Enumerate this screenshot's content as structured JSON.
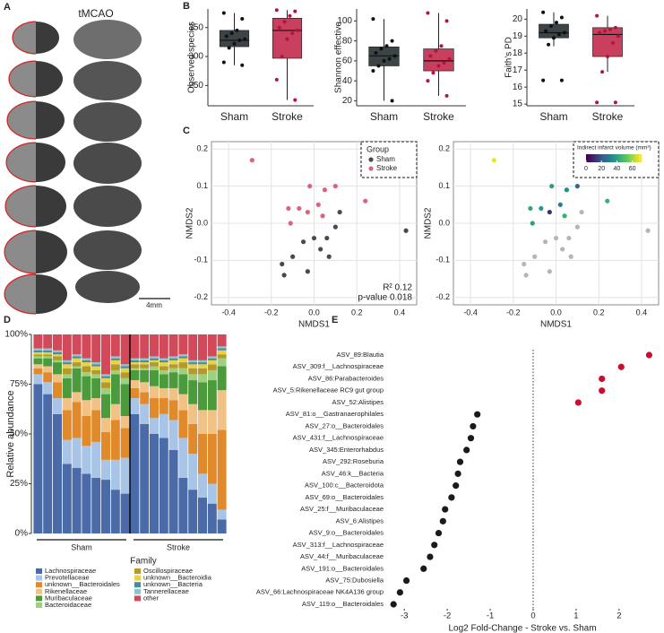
{
  "panel_labels": [
    "A",
    "B",
    "C",
    "D",
    "E"
  ],
  "panel_a": {
    "title": "tMCAO",
    "scale_bar": "4mm"
  },
  "chart_data": [
    {
      "type": "box",
      "ylabel": "Observed species",
      "categories": [
        "Sham",
        "Stroke"
      ],
      "colors": [
        "#3d4447",
        "#c9405f"
      ],
      "point_colors": [
        "#111111",
        "#b5123f"
      ],
      "boxes": [
        {
          "low": 285,
          "q1": 317,
          "median": 328,
          "q3": 345,
          "high": 375
        },
        {
          "low": 225,
          "q1": 297,
          "median": 345,
          "q3": 366,
          "high": 380
        }
      ],
      "points": [
        [
          375,
          365,
          345,
          340,
          335,
          330,
          328,
          322,
          315,
          290,
          285
        ],
        [
          380,
          378,
          370,
          360,
          350,
          345,
          340,
          330,
          300,
          260,
          225
        ]
      ],
      "ylim": [
        215,
        382
      ],
      "yticks": [
        250,
        300,
        350
      ]
    },
    {
      "type": "box",
      "ylabel": "Shannon effective",
      "categories": [
        "Sham",
        "Stroke"
      ],
      "colors": [
        "#3d4447",
        "#c9405f"
      ],
      "point_colors": [
        "#111111",
        "#b5123f"
      ],
      "boxes": [
        {
          "low": 20,
          "q1": 55,
          "median": 65,
          "q3": 74,
          "high": 102
        },
        {
          "low": 25,
          "q1": 50,
          "median": 60,
          "q3": 72,
          "high": 108
        }
      ],
      "points": [
        [
          102,
          80,
          75,
          72,
          68,
          65,
          62,
          60,
          55,
          50,
          20
        ],
        [
          108,
          100,
          75,
          70,
          65,
          62,
          58,
          55,
          48,
          40,
          25
        ]
      ],
      "ylim": [
        15,
        112
      ],
      "yticks": [
        20,
        40,
        60,
        80,
        100
      ]
    },
    {
      "type": "box",
      "ylabel": "Faith's PD",
      "categories": [
        "Sham",
        "Stroke"
      ],
      "colors": [
        "#3d4447",
        "#c9405f"
      ],
      "point_colors": [
        "#111111",
        "#b5123f"
      ],
      "boxes": [
        {
          "low": 18.4,
          "q1": 18.9,
          "median": 19.2,
          "q3": 19.7,
          "high": 20.4
        },
        {
          "low": 16.9,
          "q1": 17.8,
          "median": 19.1,
          "q3": 19.5,
          "high": 20.2
        }
      ],
      "points": [
        [
          20.4,
          20.1,
          19.8,
          19.6,
          19.3,
          19.2,
          19.1,
          18.9,
          18.5,
          16.4,
          16.4
        ],
        [
          20.2,
          19.5,
          19.4,
          19.3,
          19.2,
          19.0,
          18.6,
          17.8,
          16.9,
          15.1,
          15.1
        ]
      ],
      "ylim": [
        14.9,
        20.6
      ],
      "yticks": [
        15,
        16,
        17,
        18,
        19,
        20
      ]
    },
    {
      "type": "scatter",
      "xlabel": "NMDS1",
      "ylabel": "NMDS2",
      "xlim": [
        -0.48,
        0.48
      ],
      "ylim": [
        -0.22,
        0.22
      ],
      "xticks": [
        -0.4,
        -0.2,
        {
          "value": 0,
          "label": "0.0"
        },
        0.2,
        0.4
      ],
      "yticks": [
        -0.2,
        -0.1,
        {
          "value": 0,
          "label": "0.0"
        },
        0.1,
        0.2
      ],
      "grid": true,
      "legend_title": "Group",
      "legend_position": "top-right",
      "series": [
        {
          "name": "Sham",
          "color": "#4a4a4a",
          "x": [
            0.43,
            0.12,
            0.1,
            0.06,
            0.0,
            -0.05,
            0.03,
            0.07,
            -0.1,
            -0.03,
            -0.15,
            -0.14
          ],
          "y": [
            -0.02,
            0.03,
            -0.01,
            -0.04,
            -0.04,
            -0.05,
            -0.07,
            -0.09,
            -0.09,
            -0.13,
            -0.11,
            -0.14
          ]
        },
        {
          "name": "Stroke",
          "color": "#d9647e",
          "x": [
            -0.29,
            0.24,
            0.1,
            0.05,
            -0.02,
            -0.12,
            -0.07,
            -0.03,
            0.04,
            -0.11,
            0.02
          ],
          "y": [
            0.17,
            0.06,
            0.1,
            0.09,
            0.1,
            0.04,
            0.04,
            0.03,
            0.02,
            0.0,
            0.05
          ]
        }
      ],
      "annotations": [
        "R² 0.12",
        "p-value 0.018"
      ]
    },
    {
      "type": "scatter",
      "xlabel": "NMDS1",
      "ylabel": "NMDS2",
      "xlim": [
        -0.48,
        0.48
      ],
      "ylim": [
        -0.22,
        0.22
      ],
      "xticks": [
        -0.4,
        -0.2,
        {
          "value": 0,
          "label": "0.0"
        },
        0.2,
        0.4
      ],
      "yticks": [
        -0.2,
        -0.1,
        {
          "value": 0,
          "label": "0.0"
        },
        0.1,
        0.2
      ],
      "grid": true,
      "colorbar_title": "Indirect infarct volume (mm³)",
      "color_scale": "viridis",
      "clim": [
        0,
        72
      ],
      "cticks": [
        0,
        20,
        40,
        60
      ],
      "series": [
        {
          "color": "#b5b5b5",
          "x": [
            0.43,
            0.12,
            0.1,
            0.06,
            0.0,
            -0.05,
            0.03,
            0.07,
            -0.1,
            -0.03,
            -0.15,
            -0.14
          ],
          "y": [
            -0.02,
            0.03,
            -0.01,
            -0.04,
            -0.04,
            -0.05,
            -0.07,
            -0.09,
            -0.09,
            -0.13,
            -0.11,
            -0.14
          ]
        },
        {
          "x": [
            -0.29,
            0.24,
            0.1,
            0.05,
            -0.02,
            -0.12,
            -0.07,
            -0.03,
            0.04,
            -0.11,
            0.02
          ],
          "y": [
            0.17,
            0.06,
            0.1,
            0.09,
            0.1,
            0.04,
            0.04,
            0.03,
            0.02,
            0.0,
            0.05
          ],
          "c": [
            70,
            45,
            25,
            35,
            40,
            42,
            38,
            10,
            45,
            40,
            30
          ]
        }
      ]
    },
    {
      "type": "stacked_bar",
      "ylabel": "Relative abundance",
      "legend_title": "Family",
      "groups": [
        "Sham",
        "Stroke"
      ],
      "categories": [
        null,
        null,
        null,
        null,
        null,
        null,
        null,
        null,
        null,
        null,
        null,
        null,
        null,
        null,
        null,
        null,
        null,
        null,
        null,
        null
      ],
      "ylim": [
        0,
        100
      ],
      "yticks": [
        {
          "value": 0,
          "label": "0%"
        },
        {
          "value": 25,
          "label": "25%"
        },
        {
          "value": 50,
          "label": "50%"
        },
        {
          "value": 75,
          "label": "75%"
        },
        {
          "value": 100,
          "label": "100%"
        }
      ],
      "series": [
        {
          "name": "Lachnospiraceae",
          "color": "#4a6aa8",
          "values": [
            75,
            70,
            60,
            35,
            33,
            30,
            28,
            27,
            22,
            20,
            60,
            55,
            50,
            48,
            42,
            28,
            22,
            18,
            15,
            7
          ]
        },
        {
          "name": "Prevotellaceae",
          "color": "#a8c4e6",
          "values": [
            5,
            6,
            8,
            12,
            15,
            14,
            18,
            10,
            15,
            18,
            8,
            10,
            8,
            12,
            15,
            20,
            18,
            12,
            10,
            5
          ]
        },
        {
          "name": "unknown__Bacteroidales",
          "color": "#e08a2c",
          "values": [
            3,
            5,
            8,
            15,
            18,
            15,
            16,
            14,
            20,
            15,
            5,
            6,
            10,
            8,
            10,
            14,
            15,
            20,
            25,
            40
          ]
        },
        {
          "name": "Rikenellaceae",
          "color": "#f2c185",
          "values": [
            2,
            3,
            4,
            6,
            5,
            8,
            6,
            7,
            8,
            6,
            4,
            5,
            6,
            5,
            6,
            8,
            10,
            12,
            12,
            20
          ]
        },
        {
          "name": "Muribaculaceae",
          "color": "#4b9a3c",
          "values": [
            3,
            4,
            6,
            10,
            12,
            12,
            10,
            12,
            15,
            16,
            5,
            6,
            8,
            7,
            8,
            10,
            12,
            14,
            15,
            12
          ]
        },
        {
          "name": "Bacteroidaceae",
          "color": "#9fd07f",
          "values": [
            1,
            1,
            1,
            2,
            1,
            2,
            2,
            3,
            2,
            3,
            1,
            1,
            2,
            2,
            2,
            3,
            3,
            4,
            5,
            4
          ]
        },
        {
          "name": "Oscillospiraceae",
          "color": "#b49a2b",
          "values": [
            1,
            1,
            2,
            3,
            2,
            3,
            2,
            3,
            3,
            3,
            2,
            2,
            2,
            2,
            2,
            3,
            3,
            3,
            3,
            2
          ]
        },
        {
          "name": "unknown__Bacteroidia",
          "color": "#e6d34a",
          "values": [
            1,
            1,
            1,
            2,
            2,
            2,
            2,
            2,
            2,
            2,
            1,
            1,
            1,
            2,
            2,
            2,
            2,
            2,
            2,
            2
          ]
        },
        {
          "name": "unknown__Bacteria",
          "color": "#4e8a9a",
          "values": [
            1,
            1,
            1,
            1,
            1,
            1,
            1,
            1,
            1,
            1,
            1,
            1,
            1,
            1,
            1,
            1,
            1,
            1,
            1,
            1
          ]
        },
        {
          "name": "Tannerellaceae",
          "color": "#8cc6cc",
          "values": [
            1,
            1,
            1,
            1,
            1,
            1,
            1,
            1,
            1,
            1,
            1,
            1,
            1,
            1,
            1,
            1,
            1,
            1,
            1,
            1
          ]
        },
        {
          "name": "other",
          "color": "#d24a5a",
          "values": [
            7,
            7,
            8,
            13,
            10,
            12,
            14,
            20,
            11,
            15,
            12,
            12,
            11,
            12,
            11,
            10,
            13,
            13,
            11,
            6
          ]
        }
      ]
    },
    {
      "type": "dot",
      "xlabel": "Log2 Fold-Change - Stroke vs. Sham",
      "xlim": [
        -3.4,
        2.9
      ],
      "xticks": [
        -3,
        -2,
        -1,
        0,
        1,
        2
      ],
      "ref_line": 0,
      "colors": {
        "positive": "#c8102e",
        "negative": "#1a1a1a"
      },
      "categories": [
        "ASV_89:Blautia",
        "ASV_309:f__Lachnospiraceae",
        "ASV_86:Parabacteroides",
        "ASV_5:Rikenellaceae RC9 gut group",
        "ASV_52:Alistipes",
        "ASV_81:o__Gastranaerophilales",
        "ASV_27:o__Bacteroidales",
        "ASV_431:f__Lachnospiraceae",
        "ASV_345:Enterorhabdus",
        "ASV_292:Roseburia",
        "ASV_46:k__Bacteria",
        "ASV_100:c__Bacteroidota",
        "ASV_69:o__Bacteroidales",
        "ASV_25:f__Muribaculaceae",
        "ASV_6:Alistipes",
        "ASV_9:o__Bacteroidales",
        "ASV_313:f__Lachnospiraceae",
        "ASV_44:f__Muribaculaceae",
        "ASV_191:o__Bacteroidales",
        "ASV_75:Dubosiella",
        "ASV_66:Lachnospiraceae NK4A136 group",
        "ASV_119:o__Bacteroidales"
      ],
      "values": [
        2.7,
        2.05,
        1.6,
        1.6,
        1.05,
        -1.3,
        -1.4,
        -1.45,
        -1.55,
        -1.7,
        -1.75,
        -1.8,
        -1.9,
        -2.05,
        -2.1,
        -2.2,
        -2.3,
        -2.4,
        -2.55,
        -2.95,
        -3.1,
        -3.25
      ]
    }
  ]
}
